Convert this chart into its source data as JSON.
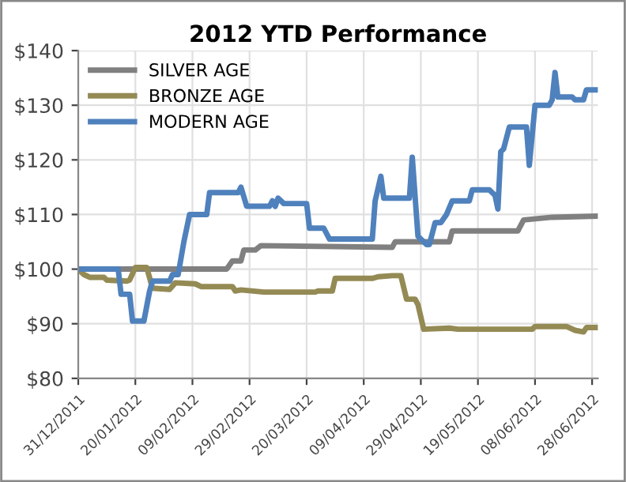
{
  "chart_data": {
    "type": "line",
    "title": "2012 YTD Performance",
    "legend": "top left",
    "grid": true,
    "marker": "none",
    "line_style": "solid",
    "xlim": [
      "2011-12-31",
      "2012-06-30"
    ],
    "xticks": [
      {
        "value": "2011-12-31",
        "label": "31/12/2011"
      },
      {
        "value": "2012-01-20",
        "label": "20/01/2012"
      },
      {
        "value": "2012-02-09",
        "label": "09/02/2012"
      },
      {
        "value": "2012-02-29",
        "label": "29/02/2012"
      },
      {
        "value": "2012-03-20",
        "label": "20/03/2012"
      },
      {
        "value": "2012-04-09",
        "label": "09/04/2012"
      },
      {
        "value": "2012-04-29",
        "label": "29/04/2012"
      },
      {
        "value": "2012-05-19",
        "label": "19/05/2012"
      },
      {
        "value": "2012-06-08",
        "label": "08/06/2012"
      },
      {
        "value": "2012-06-28",
        "label": "28/06/2012"
      }
    ],
    "ylim": [
      80,
      140
    ],
    "yticks": [
      {
        "value": 80,
        "label": "$80"
      },
      {
        "value": 90,
        "label": "$90"
      },
      {
        "value": 100,
        "label": "$100"
      },
      {
        "value": 110,
        "label": "$110"
      },
      {
        "value": 120,
        "label": "$120"
      },
      {
        "value": 130,
        "label": "$130"
      },
      {
        "value": 140,
        "label": "$140"
      }
    ],
    "series": [
      {
        "name": "SILVER AGE",
        "color": "#808080",
        "x": [
          "2011-12-31",
          "2012-02-21",
          "2012-02-23",
          "2012-02-26",
          "2012-02-27",
          "2012-03-02",
          "2012-03-04",
          "2012-04-19",
          "2012-04-20",
          "2012-05-09",
          "2012-05-10",
          "2012-06-02",
          "2012-06-04",
          "2012-06-14",
          "2012-06-30"
        ],
        "values": [
          100,
          100,
          101.5,
          101.5,
          103.5,
          103.5,
          104.3,
          104,
          105,
          105,
          107,
          107,
          109,
          109.5,
          109.7
        ]
      },
      {
        "name": "BRONZE AGE",
        "color": "#948a54",
        "x": [
          "2011-12-31",
          "2012-01-02",
          "2012-01-04",
          "2012-01-09",
          "2012-01-10",
          "2012-01-17",
          "2012-01-18",
          "2012-01-20",
          "2012-01-24",
          "2012-01-26",
          "2012-02-01",
          "2012-02-03",
          "2012-02-10",
          "2012-02-12",
          "2012-02-23",
          "2012-02-24",
          "2012-02-26",
          "2012-03-05",
          "2012-03-23",
          "2012-03-24",
          "2012-03-29",
          "2012-03-30",
          "2012-04-12",
          "2012-04-14",
          "2012-04-19",
          "2012-04-22",
          "2012-04-24",
          "2012-04-27",
          "2012-04-28",
          "2012-04-30",
          "2012-05-09",
          "2012-05-12",
          "2012-06-07",
          "2012-06-08",
          "2012-06-19",
          "2012-06-22",
          "2012-06-25",
          "2012-06-26",
          "2012-06-30"
        ],
        "values": [
          100,
          99,
          98.5,
          98.5,
          98,
          97.8,
          98,
          100.3,
          100.3,
          96.5,
          96.3,
          97.5,
          97.3,
          96.8,
          96.8,
          96,
          96.2,
          95.8,
          95.8,
          96,
          96,
          98.3,
          98.3,
          98.6,
          98.8,
          98.8,
          94.5,
          94.5,
          93.5,
          89,
          89.2,
          89,
          89,
          89.5,
          89.5,
          88.8,
          88.5,
          89.3,
          89.3
        ]
      },
      {
        "name": "MODERN AGE",
        "color": "#4f81bd",
        "x": [
          "2011-12-31",
          "2012-01-14",
          "2012-01-15",
          "2012-01-18",
          "2012-01-19",
          "2012-01-23",
          "2012-01-25",
          "2012-01-26",
          "2012-02-01",
          "2012-02-02",
          "2012-02-04",
          "2012-02-06",
          "2012-02-08",
          "2012-02-14",
          "2012-02-15",
          "2012-02-25",
          "2012-02-26",
          "2012-02-28",
          "2012-03-07",
          "2012-03-08",
          "2012-03-09",
          "2012-03-10",
          "2012-03-12",
          "2012-03-20",
          "2012-03-21",
          "2012-03-26",
          "2012-03-28",
          "2012-04-12",
          "2012-04-13",
          "2012-04-15",
          "2012-04-16",
          "2012-04-25",
          "2012-04-26",
          "2012-04-28",
          "2012-05-01",
          "2012-05-02",
          "2012-05-04",
          "2012-05-06",
          "2012-05-08",
          "2012-05-10",
          "2012-05-16",
          "2012-05-17",
          "2012-05-23",
          "2012-05-25",
          "2012-05-26",
          "2012-05-27",
          "2012-05-28",
          "2012-05-30",
          "2012-06-05",
          "2012-06-06",
          "2012-06-08",
          "2012-06-13",
          "2012-06-14",
          "2012-06-15",
          "2012-06-16",
          "2012-06-21",
          "2012-06-22",
          "2012-06-25",
          "2012-06-26",
          "2012-06-30"
        ],
        "values": [
          100,
          100,
          95.4,
          95.4,
          90.5,
          90.5,
          96,
          97.8,
          97.8,
          99,
          99,
          105,
          110,
          110,
          114,
          114,
          115,
          111.5,
          111.5,
          112.5,
          111.5,
          113,
          112,
          112,
          107.5,
          107.5,
          105.5,
          105.5,
          112.5,
          117,
          113,
          113,
          120.5,
          106,
          104.5,
          104.5,
          108.5,
          108.5,
          110,
          112.5,
          112.5,
          114.5,
          114.5,
          113.5,
          111,
          121.5,
          122,
          126,
          126,
          119,
          130,
          130,
          131,
          136,
          131.5,
          131.5,
          131,
          131,
          132.8,
          132.8
        ]
      }
    ]
  }
}
